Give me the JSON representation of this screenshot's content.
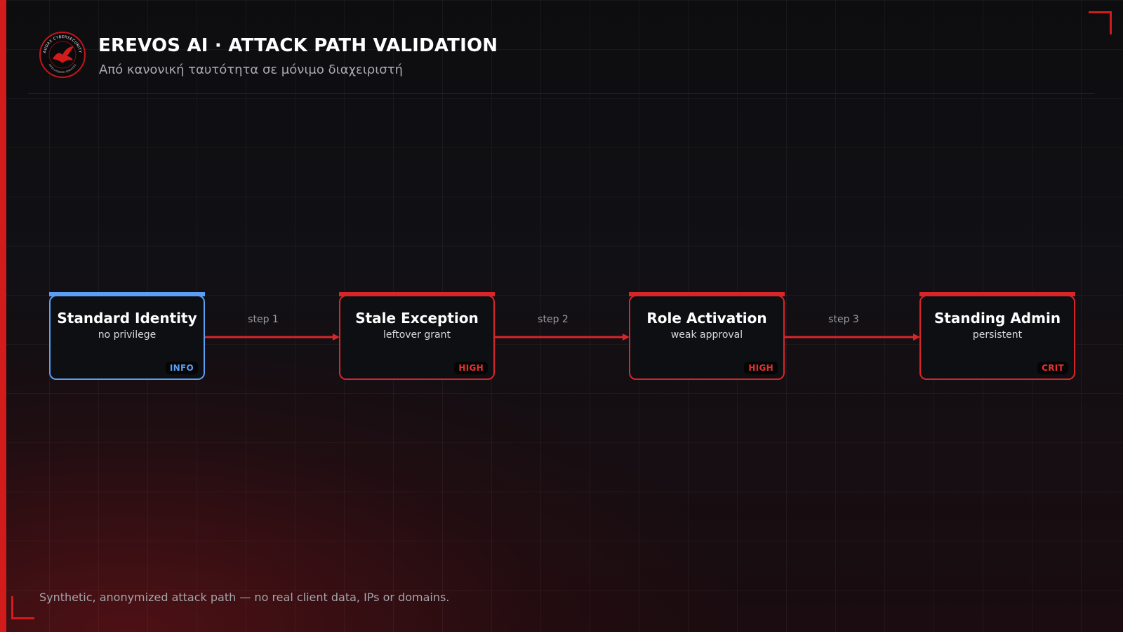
{
  "header": {
    "title": "EREVOS AI · ATTACK PATH VALIDATION",
    "subtitle": "Από κανονική ταυτότητα σε μόνιμο διαχειριστή",
    "logo_text_top": "AUDAX CYBERSECURITY",
    "logo_text_bottom": "INTELLIGENCE SERVICES"
  },
  "colors": {
    "accent_red": "#d21c1c",
    "node_red": "#d7262a",
    "info_blue": "#5b9ef5",
    "background": "#0c0c0f"
  },
  "nodes": [
    {
      "title": "Standard Identity",
      "subtitle": "no privilege",
      "badge": "INFO",
      "severity": "info"
    },
    {
      "title": "Stale Exception",
      "subtitle": "leftover grant",
      "badge": "HIGH",
      "severity": "high"
    },
    {
      "title": "Role Activation",
      "subtitle": "weak approval",
      "badge": "HIGH",
      "severity": "high"
    },
    {
      "title": "Standing Admin",
      "subtitle": "persistent",
      "badge": "CRIT",
      "severity": "crit"
    }
  ],
  "edges": [
    {
      "label": "step 1"
    },
    {
      "label": "step 2"
    },
    {
      "label": "step 3"
    }
  ],
  "footnote": "Synthetic, anonymized attack path — no real client data, IPs or domains."
}
